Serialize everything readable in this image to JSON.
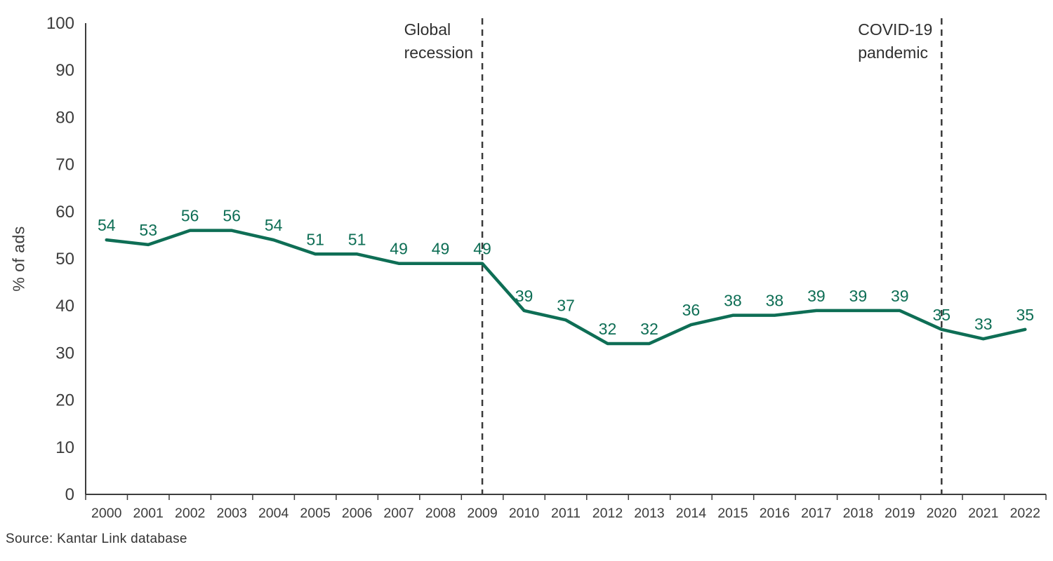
{
  "chart_data": {
    "type": "line",
    "title": "",
    "xlabel": "",
    "ylabel": "% of ads",
    "categories": [
      "2000",
      "2001",
      "2002",
      "2003",
      "2004",
      "2005",
      "2006",
      "2007",
      "2008",
      "2009",
      "2010",
      "2011",
      "2012",
      "2013",
      "2014",
      "2015",
      "2016",
      "2017",
      "2018",
      "2019",
      "2020",
      "2021",
      "2022"
    ],
    "values": [
      54,
      53,
      56,
      56,
      54,
      51,
      51,
      49,
      49,
      49,
      39,
      37,
      32,
      32,
      36,
      38,
      38,
      39,
      39,
      39,
      35,
      33,
      35
    ],
    "ylim": [
      0,
      100
    ],
    "yticks": [
      0,
      10,
      20,
      30,
      40,
      50,
      60,
      70,
      80,
      90,
      100
    ],
    "grid": false,
    "legend_position": "none",
    "data_labels_shown": true,
    "line_color": "#0E6E55",
    "axis_color": "#3C3C3C",
    "tick_label_color": "#3C3C3C",
    "annotation_line_color": "#3A3A3A",
    "annotations": [
      {
        "x": "2009",
        "lines": [
          "Global",
          "recession"
        ]
      },
      {
        "x": "2020",
        "lines": [
          "COVID-19",
          "pandemic"
        ]
      }
    ]
  },
  "source": {
    "text": "Source: Kantar Link database"
  }
}
